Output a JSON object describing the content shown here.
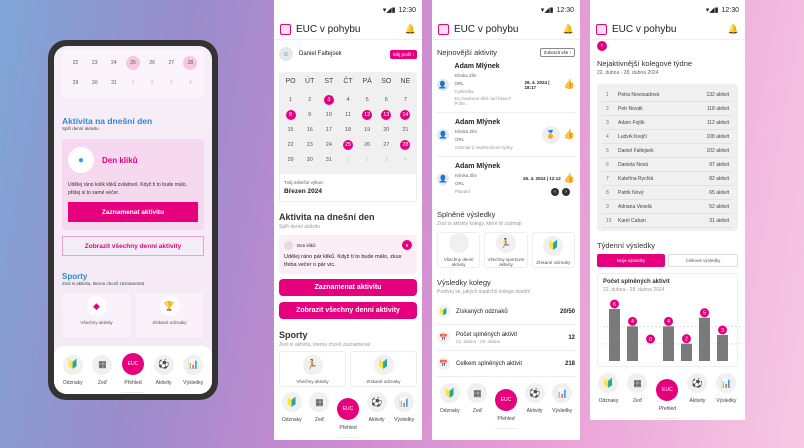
{
  "app": {
    "title": "EUC v pohybu",
    "time": "12:30",
    "accent": "#e6007e"
  },
  "nav": [
    {
      "label": "Odznaky",
      "icon": "badge-icon"
    },
    {
      "label": "Zeď",
      "icon": "wall-icon"
    },
    {
      "label": "Přehled",
      "icon": "euc-logo-icon"
    },
    {
      "label": "Aktivity",
      "icon": "ball-icon"
    },
    {
      "label": "Výsledky",
      "icon": "chart-icon"
    }
  ],
  "phone": {
    "cal_rows": [
      [
        "22",
        "23",
        "24",
        "25",
        "26",
        "27",
        "28"
      ],
      [
        "29",
        "30",
        "31",
        "1",
        "2",
        "3",
        "4"
      ]
    ],
    "section_title": "Aktivita na dnešní den",
    "section_sub": "Splň denní aktivitu",
    "card_title": "Den kliků",
    "card_text": "Udělej ráno kolik kliků zvládneš. Když ti to bude málo, přidej si to samé večer.",
    "record_btn": "Zaznamenat aktivitu",
    "all_btn": "Zobrazit všechny denní aktivity",
    "sports_title": "Sporty",
    "sports_sub": "Zvol si aktivitu, kterou chceš zaznamenat",
    "cards": [
      "Všechny aktivity",
      "Získané odznaky"
    ]
  },
  "screen1": {
    "user": "Daniel Faltejsek",
    "profile_btn": "Můj profil",
    "weekdays": [
      "PO",
      "ÚT",
      "ST",
      "ČT",
      "PÁ",
      "SO",
      "NE"
    ],
    "days": [
      [
        "1",
        "2",
        "3",
        "4",
        "5",
        "6",
        "7"
      ],
      [
        "8",
        "9",
        "10",
        "11",
        "12",
        "13",
        "14"
      ],
      [
        "15",
        "16",
        "17",
        "18",
        "19",
        "20",
        "21"
      ],
      [
        "22",
        "23",
        "24",
        "25",
        "26",
        "27",
        "28"
      ],
      [
        "29",
        "30",
        "31",
        "1",
        "2",
        "3",
        "4"
      ]
    ],
    "highlighted": [
      "3",
      "8",
      "12",
      "13",
      "14",
      "25",
      "28"
    ],
    "perf_label": "Tvůj měsíční výkon:",
    "perf_month": "Březen 2024",
    "section_title": "Aktivita na dnešní den",
    "section_sub": "Splň denní aktivitu",
    "card_title": "Den kliků",
    "card_badge": "9",
    "card_text": "Udělej ráno pár kliků. Když ti to bude málo, zkus třeba večer o pár víc.",
    "record_btn": "Zaznamenat aktivitu",
    "all_btn": "Zobrazit všechny denní aktivity",
    "sports_title": "Sporty",
    "sports_sub": "Zvol si aktivitu, kterou chceš zaznamenat",
    "cards": [
      "Všechny aktivity",
      "Získané odznaky"
    ]
  },
  "screen2": {
    "title": "Nejnovější aktivity",
    "show_all": "Zobrazit vše",
    "activities": [
      {
        "name": "Adam Mlýnek",
        "org": "Klinika Zlín",
        "dept": "ORL",
        "desc": "Cyklistika",
        "extra": " Es zvednout dítě nad hlavu? Pche...",
        "date": "26. 4. 2024 | 18:17"
      },
      {
        "name": "Adam Mlýnek",
        "org": "Klinika Zlín",
        "dept": "ORL",
        "desc": "Odznak 2 nepřerušené týdny",
        "extra": "",
        "date": ""
      },
      {
        "name": "Adam Mlýnek",
        "org": "Klinika Zlín",
        "dept": "ORL",
        "desc": "Plavání",
        "extra": "",
        "date": "26. 4. 2024 | 12:12"
      }
    ],
    "done_title": "Splněné výsledky",
    "done_sub": "Zvol si aktivity kolegy, které tě zajímají",
    "done_cards": [
      "Všechny denní aktivity",
      "Všechny sportovní aktivity",
      "Získané odznaky"
    ],
    "coll_title": "Výsledky kolegy",
    "coll_sub": "Podívej se, jakých úspěchů kolega dosáhl",
    "results": [
      {
        "label": "Získaných odznaků",
        "sub": "",
        "value": "20/50"
      },
      {
        "label": "Počet splněných aktivit",
        "sub": "22. dubna - 28. dubna",
        "value": "12"
      },
      {
        "label": "Celkem splněných aktivit",
        "sub": "",
        "value": "218"
      }
    ]
  },
  "screen3": {
    "title": "Nejaktivnější kolegové týdne",
    "range": "22. dubna - 28. dubna 2024",
    "leaders": [
      [
        "1",
        "Petra Novosadová",
        "132 aktivit"
      ],
      [
        "2",
        "Petr Novák",
        "118 aktivit"
      ],
      [
        "3",
        "Adam Fojtík",
        "112 aktivit"
      ],
      [
        "4",
        "Ludvík Krejčí",
        "108 aktivit"
      ],
      [
        "5",
        "Daniel Faltejsek",
        "102 aktivit"
      ],
      [
        "6",
        "Daniela Nová",
        "97 aktivit"
      ],
      [
        "7",
        "Kateřina Rychlá",
        "82 aktivit"
      ],
      [
        "8",
        "Patrik Nový",
        "65 aktivit"
      ],
      [
        "9",
        "Adriana Veselá",
        "52 aktivit"
      ],
      [
        "10",
        "Karel Caban",
        "31 aktivit"
      ]
    ],
    "weekly_title": "Týdenní výsledky",
    "tabs": [
      "Moje výsledky",
      "Celkové výsledky"
    ],
    "chart_title": "Počet splněných aktivit",
    "chart_range": "22. dubna - 28. dubna 2024"
  },
  "chart_data": {
    "type": "bar",
    "values": [
      6,
      4,
      0,
      4,
      2,
      5,
      3
    ],
    "title": "Počet splněných aktivit",
    "subtitle": "22. dubna - 28. dubna 2024",
    "grid": true
  }
}
